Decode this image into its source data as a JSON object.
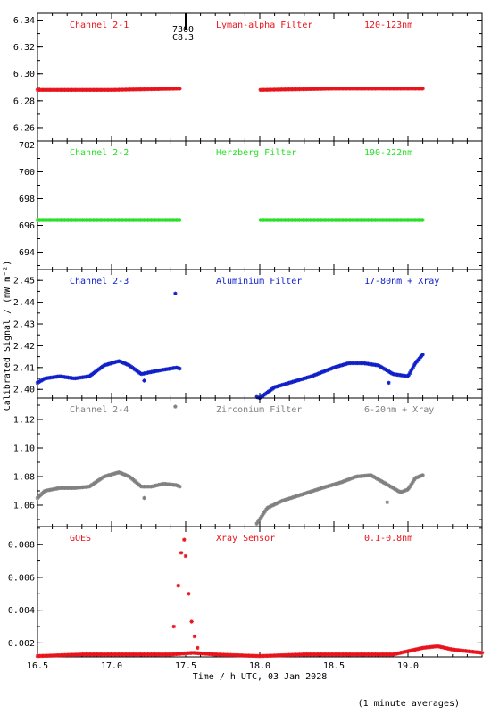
{
  "ylabel": "Calibrated Signal / (mW m⁻²)",
  "xlabel": "Time / h UTC, 03 Jan 2028",
  "footnote": "(1 minute averages)",
  "annotation": {
    "number": "7360",
    "class": "C8.3",
    "x": 17.5
  },
  "colors": {
    "red": "#e8141c",
    "green": "#28e028",
    "blue": "#1020c8",
    "gray": "#808080"
  },
  "chart_data": [
    {
      "type": "scatter",
      "label": "Channel 2-1",
      "filter": "Lyman-alpha Filter",
      "range": "120-123nm",
      "color": "#e8141c",
      "xlim": [
        16.5,
        19.5
      ],
      "ylim": [
        6.25,
        6.345
      ],
      "yticks": [
        6.26,
        6.28,
        6.3,
        6.32,
        6.34
      ],
      "ytick_labels": [
        "6.26",
        "6.28",
        "6.30",
        "6.32",
        "6.34"
      ],
      "x": [
        16.5,
        17.0,
        17.45,
        18.0,
        18.5,
        18.9,
        19.1
      ],
      "y": [
        6.288,
        6.288,
        6.289,
        6.288,
        6.289,
        6.289,
        6.289
      ],
      "gap": [
        17.46,
        18.0
      ]
    },
    {
      "type": "scatter",
      "label": "Channel 2-2",
      "filter": "Herzberg Filter",
      "range": "190-222nm",
      "color": "#28e028",
      "xlim": [
        16.5,
        19.5
      ],
      "ylim": [
        692.7,
        702.3
      ],
      "yticks": [
        694,
        696,
        698,
        700,
        702
      ],
      "ytick_labels": [
        "694",
        "696",
        "698",
        "700",
        "702"
      ],
      "x": [
        16.5,
        17.0,
        17.45,
        18.0,
        18.5,
        18.9,
        19.1
      ],
      "y": [
        696.4,
        696.4,
        696.4,
        696.4,
        696.4,
        696.4,
        696.4
      ],
      "gap": [
        17.46,
        18.0
      ]
    },
    {
      "type": "scatter",
      "label": "Channel 2-3",
      "filter": "Aluminium Filter",
      "range": "17-80nm + Xray",
      "color": "#1020c8",
      "xlim": [
        16.5,
        19.5
      ],
      "ylim": [
        2.396,
        2.455
      ],
      "yticks": [
        2.4,
        2.41,
        2.42,
        2.43,
        2.44,
        2.45
      ],
      "ytick_labels": [
        "2.40",
        "2.41",
        "2.42",
        "2.43",
        "2.44",
        "2.45"
      ],
      "x": [
        16.5,
        16.55,
        16.65,
        16.75,
        16.85,
        16.95,
        17.05,
        17.12,
        17.2,
        17.27,
        17.35,
        17.44,
        18.0,
        18.1,
        18.2,
        18.35,
        18.5,
        18.6,
        18.7,
        18.8,
        18.9,
        19.0,
        19.05,
        19.1
      ],
      "y": [
        2.403,
        2.405,
        2.406,
        2.405,
        2.406,
        2.411,
        2.413,
        2.411,
        2.407,
        2.408,
        2.409,
        2.41,
        2.396,
        2.401,
        2.403,
        2.406,
        2.41,
        2.412,
        2.412,
        2.411,
        2.407,
        2.406,
        2.412,
        2.416
      ],
      "extra_points": [
        {
          "x": 17.43,
          "y": 2.444
        },
        {
          "x": 17.22,
          "y": 2.404
        },
        {
          "x": 18.87,
          "y": 2.403
        }
      ]
    },
    {
      "type": "scatter",
      "label": "Channel 2-4",
      "filter": "Zirconium Filter",
      "range": "6-20nm + Xray",
      "color": "#808080",
      "xlim": [
        16.5,
        19.5
      ],
      "ylim": [
        1.045,
        1.135
      ],
      "yticks": [
        1.06,
        1.08,
        1.1,
        1.12
      ],
      "ytick_labels": [
        "1.06",
        "1.08",
        "1.10",
        "1.12"
      ],
      "x": [
        16.5,
        16.55,
        16.65,
        16.75,
        16.85,
        16.95,
        17.05,
        17.12,
        17.2,
        17.27,
        17.35,
        17.44,
        17.98,
        18.05,
        18.15,
        18.3,
        18.45,
        18.55,
        18.65,
        18.75,
        18.85,
        18.95,
        19.0,
        19.05,
        19.1
      ],
      "y": [
        1.065,
        1.07,
        1.072,
        1.072,
        1.073,
        1.08,
        1.083,
        1.08,
        1.073,
        1.073,
        1.075,
        1.074,
        1.047,
        1.058,
        1.063,
        1.068,
        1.073,
        1.076,
        1.08,
        1.081,
        1.075,
        1.069,
        1.071,
        1.079,
        1.081
      ],
      "extra_points": [
        {
          "x": 17.43,
          "y": 1.129
        },
        {
          "x": 17.22,
          "y": 1.065
        },
        {
          "x": 18.86,
          "y": 1.062
        }
      ]
    },
    {
      "type": "scatter",
      "label": "GOES",
      "filter": "Xray Sensor",
      "range": "0.1-0.8nm",
      "color": "#e8141c",
      "xlim": [
        16.5,
        19.5
      ],
      "ylim": [
        0.00115,
        0.0091
      ],
      "yticks": [
        0.002,
        0.004,
        0.006,
        0.008
      ],
      "ytick_labels": [
        "0.002",
        "0.004",
        "0.006",
        "0.008"
      ],
      "xticks": [
        16.5,
        17.0,
        17.5,
        18.0,
        18.5,
        19.0
      ],
      "xtick_labels": [
        "16.5",
        "17.0",
        "17.5",
        "18.0",
        "18.5",
        "19.0"
      ],
      "x": [
        16.5,
        16.8,
        17.1,
        17.3,
        17.4,
        17.55,
        17.7,
        18.0,
        18.3,
        18.6,
        18.9,
        19.0,
        19.1,
        19.2,
        19.3,
        19.5
      ],
      "y": [
        0.0012,
        0.0013,
        0.0013,
        0.0013,
        0.0013,
        0.0014,
        0.0013,
        0.0012,
        0.0013,
        0.0013,
        0.0013,
        0.0015,
        0.0017,
        0.0018,
        0.0016,
        0.0014
      ],
      "extra_points": [
        {
          "x": 17.42,
          "y": 0.003
        },
        {
          "x": 17.45,
          "y": 0.0055
        },
        {
          "x": 17.47,
          "y": 0.0075
        },
        {
          "x": 17.49,
          "y": 0.0083
        },
        {
          "x": 17.5,
          "y": 0.0073
        },
        {
          "x": 17.52,
          "y": 0.005
        },
        {
          "x": 17.54,
          "y": 0.0033
        },
        {
          "x": 17.56,
          "y": 0.0024
        },
        {
          "x": 17.58,
          "y": 0.0017
        }
      ]
    }
  ]
}
